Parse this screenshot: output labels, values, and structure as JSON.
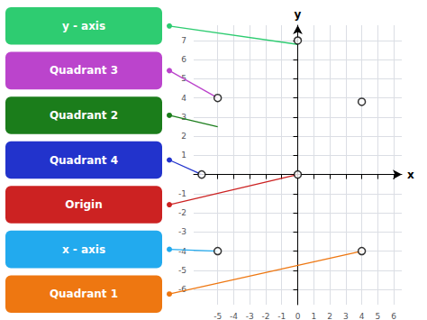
{
  "chart_data": {
    "type": "scatter",
    "x_label": "x",
    "y_label": "y",
    "x": [
      0,
      -5,
      4,
      0,
      -6,
      -5,
      4
    ],
    "values": [
      7,
      4,
      3.8,
      0,
      0,
      -4,
      -4
    ],
    "xlim": [
      -6.5,
      6.5
    ],
    "ylim": [
      -6.8,
      7.8
    ],
    "xticks": [
      -5,
      -4,
      -3,
      -2,
      -1,
      0,
      1,
      2,
      3,
      4,
      5,
      6
    ],
    "yticks": [
      -6,
      -5,
      -4,
      -3,
      -2,
      -1,
      1,
      2,
      3,
      4,
      5,
      6,
      7
    ],
    "grid": true,
    "marker": "open circle",
    "annotations": [
      {
        "text": "y - axis",
        "color": "#2ecc71",
        "x": 0,
        "y": 6.8
      },
      {
        "text": "Quadrant 3",
        "color": "#bb44cc",
        "x": -5,
        "y": 4.0
      },
      {
        "text": "Quadrant 2",
        "color": "#1b7d1b",
        "x": -5,
        "y": 2.5
      },
      {
        "text": "Quadrant 4",
        "color": "#2233cc",
        "x": -6,
        "y": 0.0
      },
      {
        "text": "Origin",
        "color": "#cc2222",
        "x": 0,
        "y": 0.0
      },
      {
        "text": "x - axis",
        "color": "#22aaee",
        "x": -5,
        "y": -4.0
      },
      {
        "text": "Quadrant 1",
        "color": "#ee7711",
        "x": 4,
        "y": -4.0
      }
    ]
  }
}
